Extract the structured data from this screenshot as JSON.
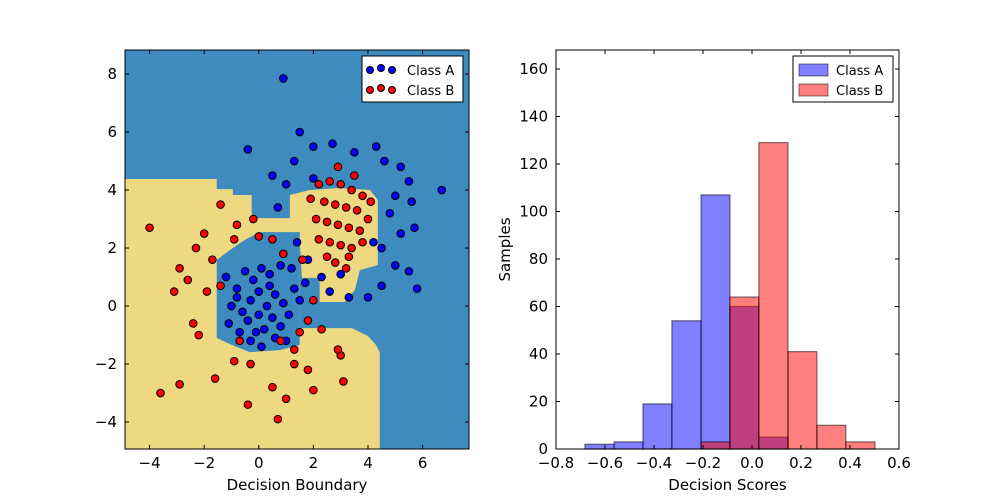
{
  "chart_data": [
    {
      "type": "scatter",
      "xlabel": "Decision Boundary",
      "ylabel": "",
      "xlim": [
        -4.9,
        7.7
      ],
      "ylim": [
        -4.93,
        8.83
      ],
      "xticks": [
        -4,
        -2,
        0,
        2,
        4,
        6
      ],
      "yticks": [
        -4,
        -2,
        0,
        2,
        4,
        6,
        8
      ],
      "legend": {
        "placement": "top-right",
        "entries": [
          "Class A",
          "Class B"
        ]
      },
      "colors": {
        "Class A": "#0000ff",
        "Class B": "#ff0000",
        "region_a": "#3e8bbf",
        "region_b": "#eed982"
      },
      "decision_regions": {
        "background": "Class A",
        "class_b_polygons": [
          [
            [
              -4.91,
              4.38
            ],
            [
              -1.54,
              4.38
            ],
            [
              -1.54,
              4.03
            ],
            [
              -0.95,
              4.03
            ],
            [
              -0.95,
              3.83
            ],
            [
              -0.26,
              3.83
            ],
            [
              -0.26,
              3.03
            ],
            [
              1.5,
              3.03
            ],
            [
              1.5,
              -0.76
            ],
            [
              3.41,
              -0.76
            ],
            [
              3.99,
              -1.03
            ],
            [
              4.29,
              -1.34
            ],
            [
              4.43,
              -1.59
            ],
            [
              4.43,
              -4.93
            ],
            [
              -4.91,
              -4.93
            ]
          ],
          [
            [
              1.14,
              3.83
            ],
            [
              1.87,
              4.0
            ],
            [
              2.97,
              4.07
            ],
            [
              4.07,
              4.0
            ],
            [
              4.36,
              3.66
            ],
            [
              4.36,
              1.41
            ],
            [
              3.7,
              1.24
            ],
            [
              3.52,
              0.55
            ],
            [
              3.15,
              0.14
            ],
            [
              2.23,
              0.14
            ],
            [
              2.23,
              0.97
            ],
            [
              1.58,
              0.97
            ],
            [
              1.5,
              2.28
            ],
            [
              1.14,
              2.45
            ]
          ]
        ],
        "class_a_polygons": [
          [
            [
              -1.54,
              1.59
            ],
            [
              -1.06,
              1.93
            ],
            [
              -0.51,
              2.28
            ],
            [
              0.04,
              2.55
            ],
            [
              1.5,
              2.55
            ],
            [
              1.5,
              -1.34
            ],
            [
              0.77,
              -1.52
            ],
            [
              -0.33,
              -1.59
            ],
            [
              -0.99,
              -1.34
            ],
            [
              -1.54,
              -1.1
            ]
          ]
        ]
      },
      "series": [
        {
          "name": "Class A",
          "points": [
            [
              -1.2,
              1.0
            ],
            [
              -0.8,
              0.6
            ],
            [
              -0.5,
              1.2
            ],
            [
              -0.2,
              0.9
            ],
            [
              0.1,
              1.3
            ],
            [
              0.4,
              1.1
            ],
            [
              0.8,
              1.4
            ],
            [
              1.2,
              1.3
            ],
            [
              -1.0,
              0.0
            ],
            [
              -0.6,
              -0.2
            ],
            [
              -0.3,
              0.2
            ],
            [
              0.0,
              0.5
            ],
            [
              0.3,
              0.0
            ],
            [
              0.6,
              0.4
            ],
            [
              0.9,
              0.1
            ],
            [
              1.3,
              0.6
            ],
            [
              -1.1,
              -0.6
            ],
            [
              -0.7,
              -0.9
            ],
            [
              -0.4,
              -0.5
            ],
            [
              0.0,
              -0.3
            ],
            [
              0.2,
              -0.8
            ],
            [
              0.5,
              -0.4
            ],
            [
              0.8,
              -0.7
            ],
            [
              1.1,
              -0.3
            ],
            [
              -0.3,
              -1.2
            ],
            [
              0.1,
              -1.4
            ],
            [
              0.6,
              -1.1
            ],
            [
              1.0,
              -1.2
            ],
            [
              -0.8,
              0.3
            ],
            [
              0.4,
              0.7
            ],
            [
              -0.1,
              -0.9
            ],
            [
              1.5,
              0.2
            ],
            [
              0.9,
              7.85
            ],
            [
              -0.4,
              5.4
            ],
            [
              1.5,
              6.0
            ],
            [
              6.7,
              4.0
            ],
            [
              1.3,
              5.0
            ],
            [
              2.0,
              5.5
            ],
            [
              2.7,
              5.6
            ],
            [
              3.5,
              5.3
            ],
            [
              4.3,
              5.5
            ],
            [
              4.6,
              5.0
            ],
            [
              5.2,
              4.8
            ],
            [
              5.5,
              4.3
            ],
            [
              5.6,
              3.6
            ],
            [
              5.0,
              3.8
            ],
            [
              4.8,
              3.2
            ],
            [
              5.2,
              2.5
            ],
            [
              5.7,
              2.7
            ],
            [
              5.5,
              1.2
            ],
            [
              5.8,
              0.6
            ],
            [
              5.0,
              1.4
            ],
            [
              4.5,
              0.7
            ],
            [
              4.0,
              0.3
            ],
            [
              3.3,
              0.3
            ],
            [
              2.6,
              0.5
            ],
            [
              2.3,
              1.0
            ],
            [
              1.8,
              1.6
            ],
            [
              1.4,
              2.2
            ],
            [
              0.7,
              3.4
            ],
            [
              0.5,
              4.5
            ],
            [
              1.0,
              4.2
            ],
            [
              2.0,
              4.4
            ],
            [
              4.2,
              2.2
            ],
            [
              4.5,
              2.0
            ],
            [
              3.0,
              1.1
            ],
            [
              1.7,
              0.8
            ]
          ]
        },
        {
          "name": "Class B",
          "points": [
            [
              -3.6,
              -3.0
            ],
            [
              -2.9,
              -2.7
            ],
            [
              -1.6,
              -2.5
            ],
            [
              -0.4,
              -3.4
            ],
            [
              0.5,
              -2.8
            ],
            [
              1.0,
              -3.2
            ],
            [
              0.7,
              -3.9
            ],
            [
              1.8,
              -2.2
            ],
            [
              2.0,
              -2.9
            ],
            [
              3.1,
              -2.6
            ],
            [
              3.0,
              -1.7
            ],
            [
              2.9,
              -1.5
            ],
            [
              1.3,
              -2.0
            ],
            [
              -0.3,
              -2.0
            ],
            [
              -0.9,
              -1.9
            ],
            [
              -2.2,
              -1.0
            ],
            [
              -2.4,
              -0.6
            ],
            [
              -3.1,
              0.5
            ],
            [
              -2.6,
              0.9
            ],
            [
              -2.9,
              1.3
            ],
            [
              -2.3,
              2.0
            ],
            [
              -1.7,
              1.6
            ],
            [
              -1.4,
              0.7
            ],
            [
              -1.9,
              0.5
            ],
            [
              -4.0,
              2.7
            ],
            [
              -1.4,
              3.5
            ],
            [
              -0.8,
              2.8
            ],
            [
              -0.9,
              2.3
            ],
            [
              -2.0,
              2.5
            ],
            [
              -0.2,
              3.0
            ],
            [
              0.0,
              2.4
            ],
            [
              0.5,
              2.3
            ],
            [
              0.9,
              1.8
            ],
            [
              1.6,
              1.6
            ],
            [
              2.0,
              0.2
            ],
            [
              2.3,
              -0.8
            ],
            [
              1.5,
              -0.9
            ],
            [
              1.3,
              -1.5
            ],
            [
              0.8,
              -1.2
            ],
            [
              -0.7,
              -1.2
            ],
            [
              1.8,
              -0.5
            ],
            [
              2.2,
              4.2
            ],
            [
              2.6,
              4.3
            ],
            [
              3.0,
              4.2
            ],
            [
              3.4,
              4.0
            ],
            [
              3.8,
              3.8
            ],
            [
              2.4,
              3.6
            ],
            [
              2.8,
              3.5
            ],
            [
              3.2,
              3.4
            ],
            [
              3.6,
              3.3
            ],
            [
              4.0,
              3.0
            ],
            [
              2.1,
              3.0
            ],
            [
              2.5,
              2.9
            ],
            [
              2.9,
              2.8
            ],
            [
              3.3,
              2.7
            ],
            [
              3.7,
              2.6
            ],
            [
              2.2,
              2.3
            ],
            [
              2.6,
              2.2
            ],
            [
              3.0,
              2.1
            ],
            [
              3.4,
              2.0
            ],
            [
              3.8,
              2.2
            ],
            [
              2.8,
              1.5
            ],
            [
              3.2,
              1.3
            ],
            [
              2.5,
              1.7
            ],
            [
              4.1,
              3.6
            ],
            [
              1.9,
              3.7
            ],
            [
              3.5,
              4.5
            ],
            [
              2.9,
              4.8
            ],
            [
              3.3,
              1.7
            ]
          ]
        }
      ]
    },
    {
      "type": "bar",
      "subtype": "histogram",
      "xlabel": "Decision Scores",
      "ylabel": "Samples",
      "xlim": [
        -0.8,
        0.6
      ],
      "ylim": [
        0,
        168
      ],
      "xticks": [
        -0.8,
        -0.6,
        -0.4,
        -0.2,
        0.0,
        0.2,
        0.4,
        0.6
      ],
      "yticks": [
        0,
        20,
        40,
        60,
        80,
        100,
        120,
        140,
        160
      ],
      "legend": {
        "placement": "top-right",
        "entries": [
          "Class A",
          "Class B"
        ]
      },
      "bin_edges": [
        -0.682,
        -0.563,
        -0.445,
        -0.327,
        -0.208,
        -0.09,
        0.028,
        0.147,
        0.265,
        0.383,
        0.502
      ],
      "series": [
        {
          "name": "Class A",
          "color": "#0000ff",
          "alpha": 0.5,
          "values": [
            2,
            3,
            19,
            54,
            107,
            60,
            5,
            0,
            0,
            0
          ]
        },
        {
          "name": "Class B",
          "color": "#ff0000",
          "alpha": 0.5,
          "values": [
            0,
            0,
            0,
            0,
            3,
            64,
            129,
            41,
            10,
            3
          ]
        }
      ]
    }
  ]
}
